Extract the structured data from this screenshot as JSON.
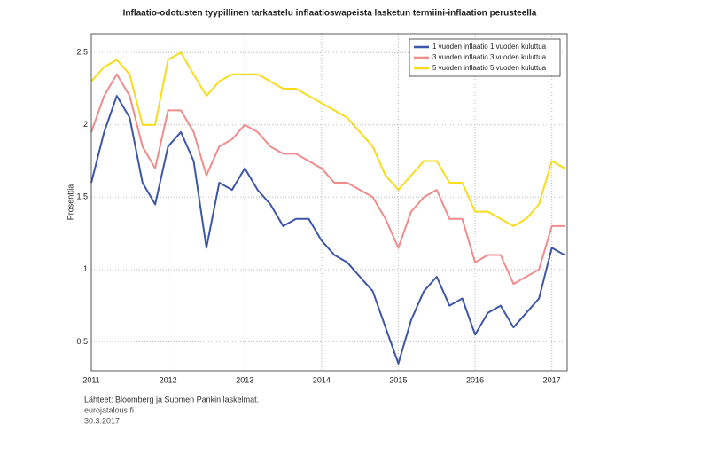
{
  "chart_data": {
    "type": "line",
    "title": "Inflaatio-odotusten tyypillinen tarkastelu inflaatioswapeista lasketun termiini-inflaation perusteella",
    "ylabel": "Prosenttia",
    "x": [
      2011.0,
      2011.167,
      2011.333,
      2011.5,
      2011.667,
      2011.833,
      2012.0,
      2012.167,
      2012.333,
      2012.5,
      2012.667,
      2012.833,
      2013.0,
      2013.167,
      2013.333,
      2013.5,
      2013.667,
      2013.833,
      2014.0,
      2014.167,
      2014.333,
      2014.5,
      2014.667,
      2014.833,
      2015.0,
      2015.167,
      2015.333,
      2015.5,
      2015.667,
      2015.833,
      2016.0,
      2016.167,
      2016.333,
      2016.5,
      2016.667,
      2016.833,
      2017.0,
      2017.167
    ],
    "series": [
      {
        "name": "1 vuoden inflaatio 1 vuoden kuluttua",
        "color": "#3c56a8",
        "values": [
          1.6,
          1.95,
          2.2,
          2.05,
          1.6,
          1.45,
          1.85,
          1.95,
          1.75,
          1.15,
          1.6,
          1.55,
          1.7,
          1.55,
          1.45,
          1.3,
          1.35,
          1.35,
          1.2,
          1.1,
          1.05,
          0.95,
          0.85,
          0.6,
          0.35,
          0.65,
          0.85,
          0.95,
          0.75,
          0.8,
          0.55,
          0.7,
          0.75,
          0.6,
          0.7,
          0.8,
          1.15,
          1.1
        ]
      },
      {
        "name": "3 vuoden inflaatio 3 vuoden kuluttua",
        "color": "#f08c8c",
        "values": [
          1.95,
          2.2,
          2.35,
          2.2,
          1.85,
          1.7,
          2.1,
          2.1,
          1.95,
          1.65,
          1.85,
          1.9,
          2.0,
          1.95,
          1.85,
          1.8,
          1.8,
          1.75,
          1.7,
          1.6,
          1.6,
          1.55,
          1.5,
          1.35,
          1.15,
          1.4,
          1.5,
          1.55,
          1.35,
          1.35,
          1.05,
          1.1,
          1.1,
          0.9,
          0.95,
          1.0,
          1.3,
          1.3
        ]
      },
      {
        "name": "5 vuoden inflaatio 5 vuoden kuluttua",
        "color": "#f7dc1e",
        "values": [
          2.3,
          2.4,
          2.45,
          2.35,
          2.0,
          2.0,
          2.45,
          2.5,
          2.35,
          2.2,
          2.3,
          2.35,
          2.35,
          2.35,
          2.3,
          2.25,
          2.25,
          2.2,
          2.15,
          2.1,
          2.05,
          1.95,
          1.85,
          1.65,
          1.55,
          1.65,
          1.75,
          1.75,
          1.6,
          1.6,
          1.4,
          1.4,
          1.35,
          1.3,
          1.35,
          1.45,
          1.75,
          1.7
        ]
      }
    ],
    "xlim": [
      2011,
      2017.2
    ],
    "xticks": [
      2011,
      2012,
      2013,
      2014,
      2015,
      2016,
      2017
    ],
    "ylim": [
      0.3,
      2.63
    ],
    "yticks": [
      0.5,
      1,
      1.5,
      2,
      2.5
    ],
    "grid": true,
    "legend": "upper right",
    "notes": [
      "Lähteet: Bloomberg ja Suomen Pankin laskelmat.",
      "eurojatalous.fi",
      "30.3.2017"
    ]
  }
}
